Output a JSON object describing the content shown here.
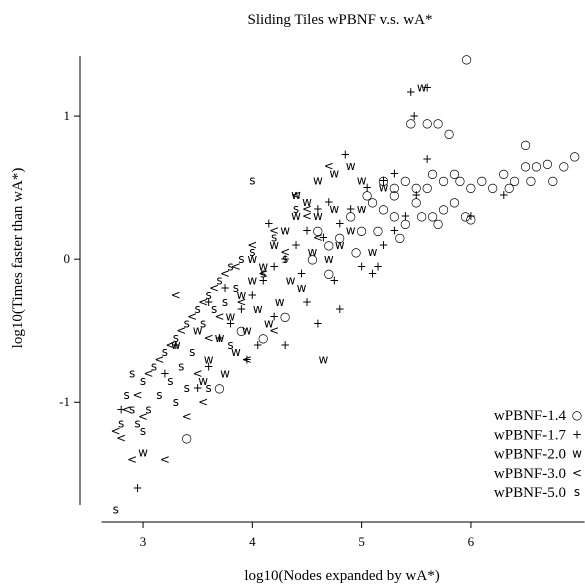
{
  "chart_data": {
    "type": "scatter",
    "title": "Sliding Tiles wPBNF v.s. wA*",
    "x_label": "log10(Nodes expanded by wA*)",
    "y_label": "log10(Times faster than wA*)",
    "xlim": [
      2.62,
      7.04
    ],
    "ylim": [
      -1.9,
      1.42
    ],
    "xticks": [
      3,
      4,
      5,
      6
    ],
    "yticks": [
      -1,
      0,
      1
    ],
    "legend": "lower right",
    "series": [
      {
        "name": "wPBNF-1.4",
        "color": "#000000",
        "marker": "○",
        "x": [
          5.2,
          5.3,
          5.4,
          5.5,
          5.6,
          5.7,
          5.8,
          5.45,
          5.65,
          5.75,
          5.9,
          6.0,
          6.1,
          6.2,
          6.3,
          6.4,
          6.5,
          6.6,
          6.7,
          6.75,
          6.95,
          6.85,
          6.5,
          6.35,
          6.55,
          5.1,
          5.2,
          5.3,
          5.4,
          5.55,
          5.65,
          5.75,
          5.85,
          5.95,
          6.0,
          5.7,
          5.5,
          5.3,
          5.0,
          4.8,
          4.7,
          4.9,
          5.05,
          4.6,
          4.95,
          5.15,
          5.35,
          5.6,
          5.85,
          3.4,
          3.9,
          3.7,
          4.1,
          4.3,
          4.55,
          4.7,
          5.96
        ],
        "values": [
          0.55,
          0.5,
          0.55,
          0.5,
          0.95,
          0.95,
          0.88,
          0.95,
          0.6,
          0.55,
          0.55,
          0.5,
          0.55,
          0.5,
          0.6,
          0.55,
          0.65,
          0.65,
          0.67,
          0.55,
          0.72,
          0.65,
          0.8,
          0.5,
          0.55,
          0.4,
          0.35,
          0.3,
          0.25,
          0.3,
          0.3,
          0.35,
          0.4,
          0.3,
          0.28,
          0.25,
          0.4,
          0.45,
          0.2,
          0.15,
          0.1,
          0.3,
          0.45,
          0.2,
          0.05,
          0.2,
          0.15,
          0.5,
          0.6,
          -1.25,
          -0.5,
          -0.9,
          -0.55,
          -0.4,
          0.0,
          -0.1,
          1.4
        ]
      },
      {
        "name": "wPBNF-1.7",
        "color": "#000000",
        "marker": "+",
        "x": [
          5.45,
          5.6,
          5.48,
          4.85,
          5.2,
          5.3,
          5.5,
          5.05,
          4.9,
          4.7,
          4.6,
          4.8,
          4.5,
          4.4,
          4.3,
          4.2,
          4.1,
          4.0,
          3.9,
          3.8,
          3.7,
          3.6,
          3.5,
          4.5,
          4.6,
          4.8,
          5.0,
          5.1,
          5.2,
          5.3,
          5.6,
          6.0,
          6.3,
          4.3,
          4.2,
          3.95,
          3.6,
          3.3,
          3.2,
          2.95,
          2.8,
          3.75,
          4.15,
          4.65,
          4.45,
          4.75,
          4.05,
          5.4,
          5.15
        ],
        "values": [
          1.17,
          1.2,
          1.0,
          0.73,
          0.55,
          0.6,
          0.45,
          0.5,
          0.35,
          0.4,
          0.35,
          0.25,
          0.2,
          0.1,
          0.0,
          -0.05,
          -0.15,
          -0.25,
          -0.35,
          -0.45,
          -0.55,
          -0.75,
          -0.9,
          -0.3,
          -0.45,
          -0.35,
          -0.05,
          -0.1,
          0.1,
          0.2,
          0.7,
          0.3,
          0.45,
          -0.6,
          -0.4,
          -0.7,
          -0.3,
          -0.6,
          -0.8,
          -1.6,
          -1.05,
          -0.2,
          0.25,
          0.15,
          -0.1,
          -0.15,
          -0.6,
          0.3,
          -0.05
        ]
      },
      {
        "name": "wPBNF-2.0",
        "color": "#000000",
        "marker": "w",
        "x": [
          5.55,
          4.6,
          4.75,
          5.0,
          4.9,
          5.2,
          4.5,
          4.4,
          4.3,
          4.2,
          4.1,
          4.0,
          3.9,
          3.8,
          3.7,
          3.6,
          3.55,
          4.65,
          3.0,
          4.55,
          4.35,
          4.25,
          4.15,
          4.45,
          4.7,
          4.8,
          4.9,
          5.0,
          4.6,
          3.95,
          3.85,
          4.05,
          3.75,
          3.5,
          3.3,
          4.0,
          4.4,
          4.75,
          5.1
        ],
        "values": [
          1.2,
          0.55,
          0.6,
          0.55,
          0.65,
          0.5,
          0.4,
          0.3,
          0.2,
          0.1,
          -0.05,
          -0.15,
          -0.25,
          -0.4,
          -0.55,
          -0.7,
          -0.85,
          -0.7,
          -1.35,
          0.05,
          -0.15,
          -0.3,
          -0.45,
          -0.2,
          0.0,
          0.1,
          0.2,
          0.35,
          0.3,
          -0.5,
          -0.65,
          -0.35,
          -0.8,
          -0.5,
          -0.6,
          0.0,
          0.45,
          0.35,
          0.05
        ]
      },
      {
        "name": "wPBNF-3.0",
        "color": "#000000",
        "marker": "<",
        "x": [
          4.7,
          4.5,
          4.4,
          4.2,
          4.0,
          3.85,
          3.75,
          3.65,
          3.55,
          3.45,
          3.35,
          3.25,
          3.15,
          3.05,
          2.95,
          2.85,
          2.75,
          2.8,
          3.0,
          3.2,
          3.4,
          3.5,
          3.6,
          3.7,
          3.9,
          4.1,
          4.3,
          4.6,
          2.9,
          3.55,
          4.2,
          3.95,
          4.5,
          3.3
        ],
        "values": [
          0.65,
          0.3,
          0.45,
          0.2,
          0.1,
          -0.05,
          -0.1,
          -0.2,
          -0.3,
          -0.4,
          -0.5,
          -0.6,
          -0.7,
          -0.8,
          -0.95,
          -1.05,
          -1.2,
          -1.25,
          -1.1,
          -1.4,
          -1.1,
          -0.8,
          -0.55,
          -0.4,
          -0.3,
          -0.1,
          0.05,
          0.15,
          -1.4,
          -1.0,
          -0.5,
          -0.7,
          0.35,
          -0.25
        ]
      },
      {
        "name": "wPBNF-5.0",
        "color": "#000000",
        "marker": "s",
        "x": [
          2.75,
          2.8,
          2.85,
          2.9,
          3.0,
          3.1,
          3.2,
          3.3,
          3.4,
          3.5,
          3.6,
          3.7,
          3.8,
          4.0,
          4.2,
          4.4,
          3.35,
          3.25,
          3.15,
          3.05,
          2.95,
          3.45,
          3.55,
          3.65,
          3.75,
          3.85,
          4.1,
          4.3,
          3.0,
          3.3,
          3.6,
          4.0,
          3.9,
          2.9,
          3.4,
          3.8
        ],
        "values": [
          -1.75,
          -1.15,
          -0.95,
          -1.05,
          -0.85,
          -0.75,
          -0.65,
          -0.55,
          -0.45,
          -0.35,
          -0.25,
          -0.15,
          -0.05,
          0.05,
          0.15,
          0.35,
          -0.75,
          -0.85,
          -0.95,
          -1.05,
          -1.15,
          -0.65,
          -0.45,
          -0.35,
          -0.3,
          -0.2,
          -0.1,
          0.0,
          -1.2,
          -1.0,
          -0.9,
          0.55,
          0.0,
          -0.8,
          -0.9,
          -0.6
        ]
      }
    ]
  }
}
